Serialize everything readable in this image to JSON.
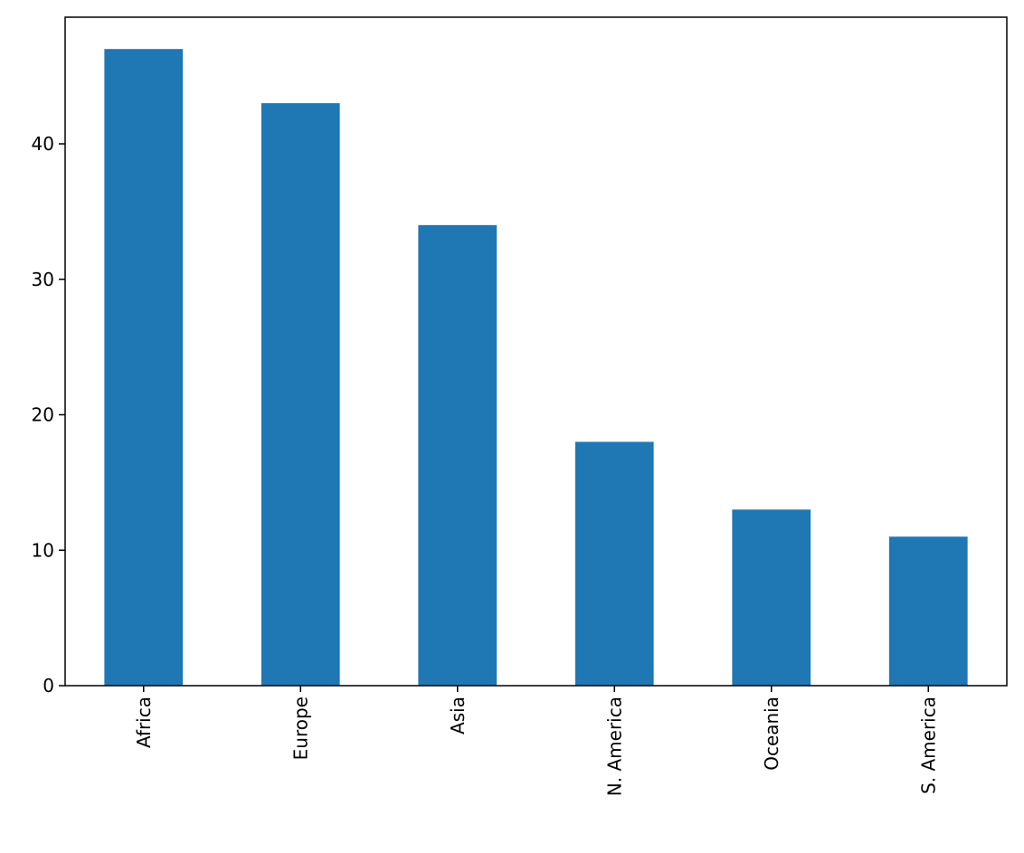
{
  "chart_data": {
    "type": "bar",
    "categories": [
      "Africa",
      "Europe",
      "Asia",
      "N. America",
      "Oceania",
      "S. America"
    ],
    "values": [
      47,
      43,
      34,
      18,
      13,
      11
    ],
    "color": "#1f77b4",
    "ylim": [
      0,
      49.35
    ],
    "yticks": [
      0,
      10,
      20,
      30,
      40
    ],
    "grid": false
  }
}
